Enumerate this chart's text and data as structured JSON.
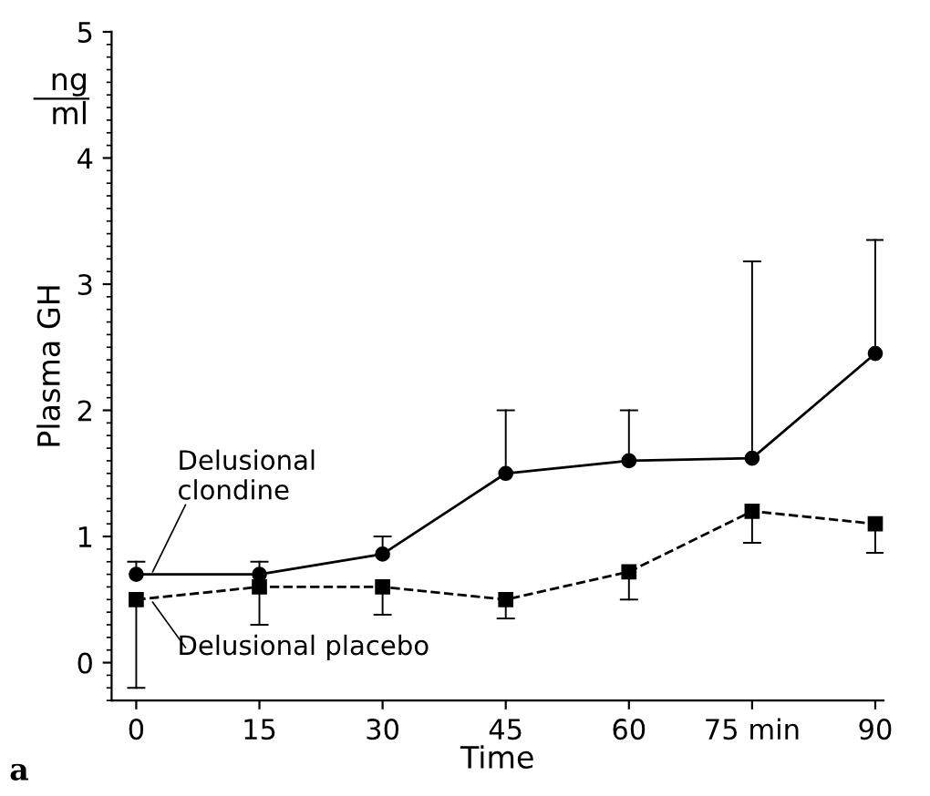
{
  "chart_data": {
    "type": "line",
    "xlabel": "Time",
    "ylabel": "Plasma GH",
    "x": [
      0,
      15,
      30,
      45,
      60,
      75,
      90
    ],
    "series": [
      {
        "name": "Delusional\nclondine",
        "color": "#000000",
        "marker": "circle",
        "line_style": "solid",
        "values": [
          0.7,
          0.7,
          0.86,
          1.5,
          1.6,
          1.62,
          2.45
        ],
        "errors": [
          [
            0.7,
            0.8
          ],
          [
            0.7,
            0.8
          ],
          [
            0.86,
            1.0
          ],
          [
            1.5,
            2.0
          ],
          [
            1.6,
            2.0
          ],
          [
            1.62,
            3.18
          ],
          [
            2.45,
            3.35
          ]
        ]
      },
      {
        "name": "Delusional placebo",
        "color": "#000000",
        "marker": "square",
        "line_style": "dashed",
        "values": [
          0.5,
          0.6,
          0.6,
          0.5,
          0.72,
          1.2,
          1.1
        ],
        "errors": [
          [
            -0.2,
            0.5
          ],
          [
            0.3,
            0.6
          ],
          [
            0.38,
            0.6
          ],
          [
            0.35,
            0.5
          ],
          [
            0.5,
            0.72
          ],
          [
            0.95,
            1.2
          ],
          [
            0.87,
            1.1
          ]
        ]
      }
    ],
    "xlim": [
      -3,
      91
    ],
    "ylim": [
      -0.3,
      5
    ],
    "xticks": [
      0,
      15,
      30,
      45,
      60,
      {
        "value": 75,
        "label": "75 min"
      },
      90
    ],
    "yticks": [
      0,
      1,
      2,
      3,
      4,
      5
    ],
    "annotations": [
      "ng\nml",
      "a"
    ],
    "grid": false,
    "legend": false
  }
}
